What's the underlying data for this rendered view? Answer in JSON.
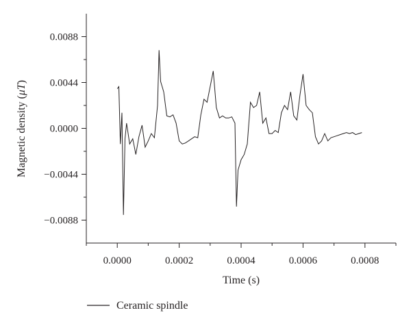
{
  "chart_data": {
    "type": "line",
    "title": "",
    "xlabel": "Time (s)",
    "ylabel_prefix": "Magnetic density (",
    "ylabel_unit": "μT",
    "ylabel_suffix": ")",
    "xlim": [
      -0.0001,
      0.0009
    ],
    "ylim": [
      -0.011,
      0.011
    ],
    "x_ticks": [
      0.0,
      0.0002,
      0.0004,
      0.0006,
      0.0008
    ],
    "x_tick_labels": [
      "0.0000",
      "0.0002",
      "0.0004",
      "0.0006",
      "0.0008"
    ],
    "y_ticks": [
      0.0088,
      0.0044,
      0.0,
      -0.0044,
      -0.0088
    ],
    "y_tick_labels": [
      "0.0088",
      "0.0044",
      "0.0000",
      "−0.0044",
      "−0.0088"
    ],
    "grid": false,
    "legend_position": "bottom-left",
    "series": [
      {
        "name": "Ceramic spindle",
        "color": "#231f20",
        "x": [
          0.0,
          5e-06,
          1e-05,
          1.5e-05,
          2e-05,
          2.5e-05,
          3e-05,
          4e-05,
          5e-05,
          6e-05,
          7e-05,
          8e-05,
          9e-05,
          0.0001,
          0.00011,
          0.00012,
          0.00013,
          0.000135,
          0.00014,
          0.00015,
          0.00016,
          0.00017,
          0.00018,
          0.00019,
          0.0002,
          0.00021,
          0.00022,
          0.00023,
          0.00024,
          0.00025,
          0.00026,
          0.00027,
          0.00028,
          0.00029,
          0.0003,
          0.00031,
          0.00032,
          0.00033,
          0.00034,
          0.00035,
          0.00036,
          0.00037,
          0.00038,
          0.000385,
          0.00039,
          0.0004,
          0.00041,
          0.00042,
          0.00043,
          0.00044,
          0.00045,
          0.00046,
          0.00047,
          0.00048,
          0.00049,
          0.0005,
          0.00051,
          0.00052,
          0.00053,
          0.00054,
          0.00055,
          0.00056,
          0.00057,
          0.00058,
          0.00059,
          0.0006,
          0.00061,
          0.00062,
          0.00063,
          0.00064,
          0.00065,
          0.00066,
          0.00067,
          0.00068,
          0.00069,
          0.0007,
          0.00071,
          0.00072,
          0.00073,
          0.00074,
          0.00075,
          0.00076,
          0.00077,
          0.00078,
          0.00079
        ],
        "y": [
          0.0038,
          0.004,
          -0.0015,
          0.0015,
          -0.0083,
          -0.001,
          0.0005,
          -0.0015,
          -0.001,
          -0.0025,
          -0.0008,
          0.0003,
          -0.0018,
          -0.0012,
          -0.0005,
          -0.0009,
          0.0022,
          0.0075,
          0.0045,
          0.0035,
          0.0012,
          0.0011,
          0.0013,
          0.0005,
          -0.0012,
          -0.0015,
          -0.0014,
          -0.0012,
          -0.001,
          -0.0008,
          -0.0009,
          0.0013,
          0.0028,
          0.0025,
          0.004,
          0.0055,
          0.002,
          0.001,
          0.0012,
          0.001,
          0.001,
          0.0011,
          0.0005,
          -0.0075,
          -0.004,
          -0.003,
          -0.0025,
          -0.0015,
          0.0025,
          0.002,
          0.0022,
          0.0035,
          0.0005,
          0.001,
          -0.0005,
          -0.0005,
          -0.0002,
          -0.0004,
          0.0015,
          0.0022,
          0.0018,
          0.0035,
          0.0012,
          0.0008,
          0.0032,
          0.0052,
          0.0022,
          0.0018,
          0.0015,
          -0.0008,
          -0.0015,
          -0.0012,
          -0.0005,
          -0.0012,
          -0.0009,
          -0.0008,
          -0.0007,
          -0.0006,
          -0.0005,
          -0.0004,
          -0.0005,
          -0.0004,
          -0.0006,
          -0.0005,
          -0.0004
        ]
      }
    ]
  }
}
